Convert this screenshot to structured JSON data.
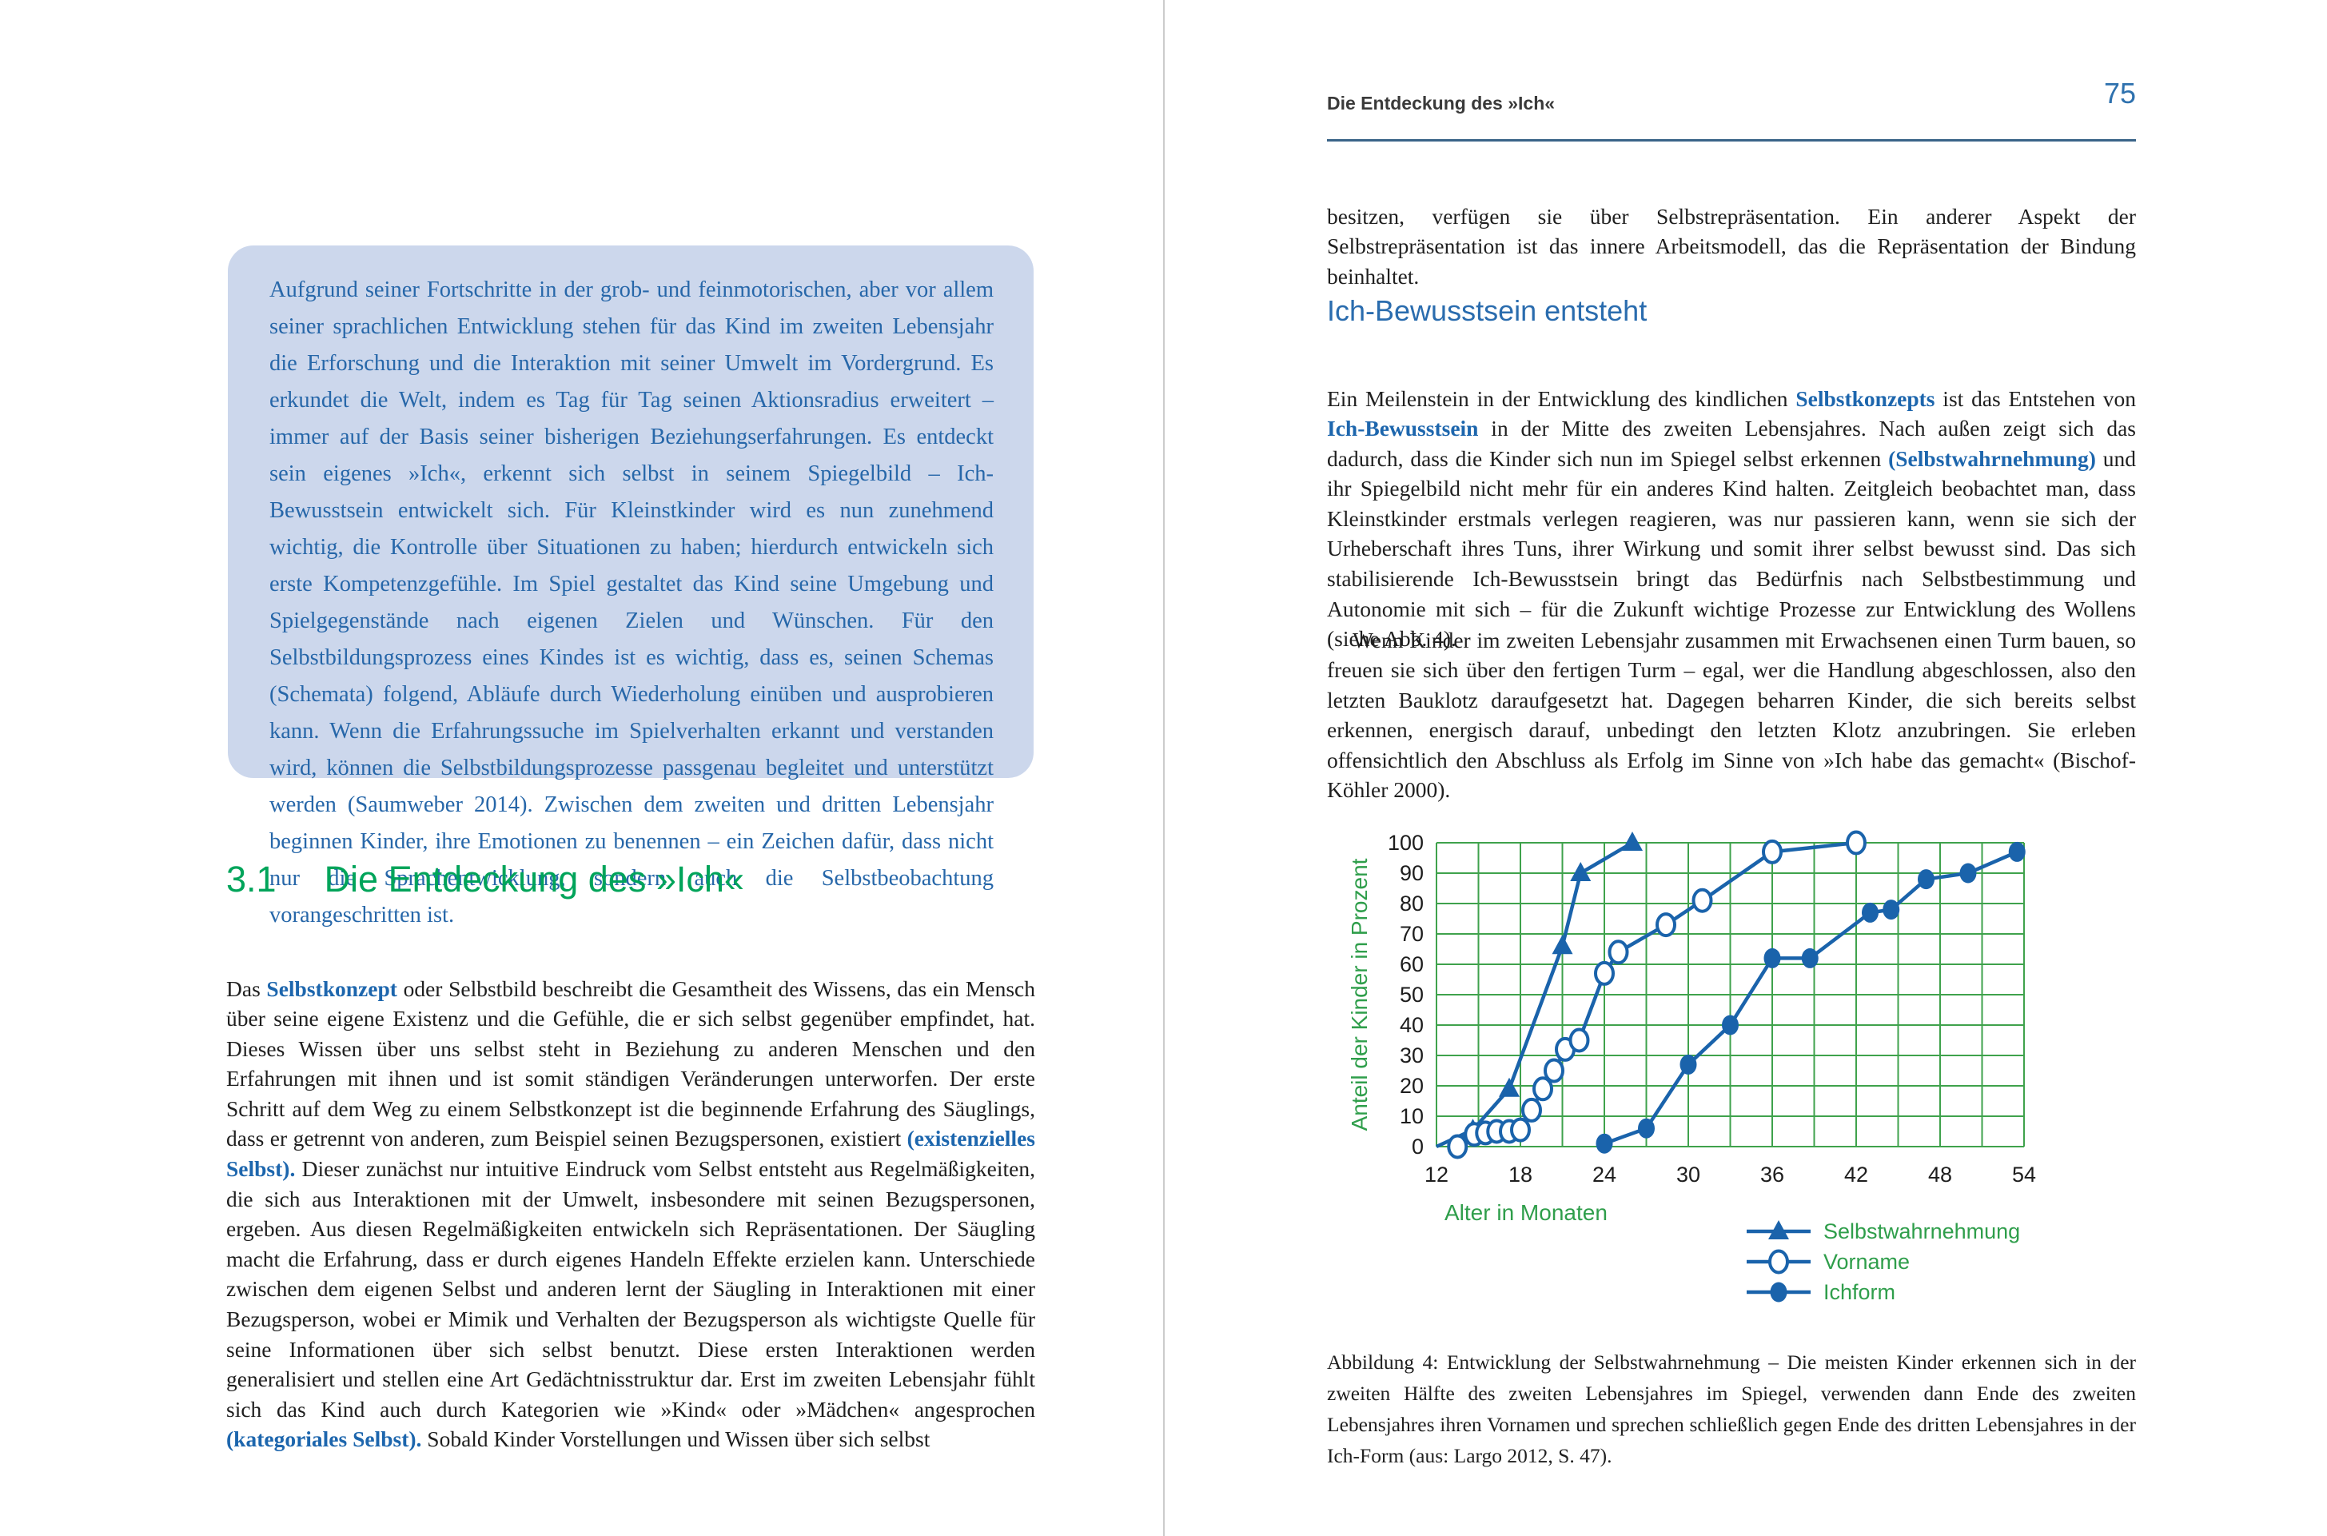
{
  "colors": {
    "accent_blue": "#1d66ad",
    "heading_green": "#00a45a",
    "infobox_bg": "#ccd7ec",
    "infobox_text": "#2767a9",
    "header_rule": "#3a6488",
    "page_number_blue": "#2e71ae"
  },
  "page_left": {
    "infobox_text": "Aufgrund seiner Fortschritte in der grob- und feinmotorischen, aber vor allem seiner sprachlichen Entwicklung stehen für das Kind im zweiten Lebensjahr die Erforschung und die Interaktion mit seiner Umwelt im Vordergrund. Es erkundet die Welt, indem es Tag für Tag seinen Aktionsradius erweitert – immer auf der Basis seiner bisherigen Beziehungserfahrungen. Es entdeckt sein eigenes »Ich«, erkennt sich selbst in seinem Spiegelbild – Ich-Bewusstsein entwickelt sich. Für Kleinstkinder wird es nun zunehmend wichtig, die Kontrolle über Situationen zu haben; hierdurch entwickeln sich erste Kompetenzgefühle. Im Spiel gestaltet das Kind seine Umgebung und Spielgegenstände nach eigenen Zielen und Wünschen. Für den Selbstbildungsprozess eines Kindes ist es wichtig, dass es, seinen Schemas (Schemata) folgend, Abläufe durch Wiederholung einüben und ausprobieren kann. Wenn die Erfahrungssuche im Spielverhalten erkannt und verstanden wird, können die Selbstbildungsprozesse passgenau begleitet und unterstützt werden (Saumweber 2014). Zwischen dem zweiten und dritten Lebensjahr beginnen Kinder, ihre Emotionen zu benennen – ein Zeichen dafür, dass nicht nur die Sprachentwicklung, sondern auch die Selbstbeobachtung vorangeschritten ist.",
    "section_number": "3.1",
    "section_title": "Die Entdeckung des »Ich«",
    "body_segments": [
      {
        "t": "Das ",
        "hl": false
      },
      {
        "t": "Selbstkonzept",
        "hl": true
      },
      {
        "t": " oder Selbstbild beschreibt die Gesamtheit des Wissens, das ein Mensch über seine eigene Existenz und die Gefühle, die er sich selbst gegenüber empfindet, hat. Dieses Wissen über uns selbst steht in Beziehung zu anderen Menschen und den Erfahrungen mit ihnen und ist somit ständigen Veränderungen unterworfen. Der erste Schritt auf dem Weg zu einem Selbstkonzept ist die beginnende Erfahrung des Säuglings, dass er getrennt von anderen, zum Beispiel seinen Bezugspersonen, existiert ",
        "hl": false
      },
      {
        "t": "(existenzielles Selbst).",
        "hl": true
      },
      {
        "t": " Dieser zunächst nur intuitive Eindruck vom Selbst entsteht aus Regelmäßigkeiten, die sich aus Interaktionen mit der Umwelt, insbesondere mit seinen Bezugspersonen, ergeben. Aus diesen Regelmäßigkeiten entwickeln sich Repräsentationen. Der Säugling macht die Erfahrung, dass er durch eigenes Handeln Effekte erzielen kann. Unterschiede zwischen dem eigenen Selbst und anderen lernt der Säugling in Interaktionen mit einer Bezugsperson, wobei er Mimik und Verhalten der Bezugsperson als wichtigste Quelle für seine Informationen über sich selbst benutzt. Diese ersten Interaktionen werden generalisiert und stellen eine Art Gedächtnisstruktur dar. Erst im zweiten Lebensjahr fühlt sich das Kind auch durch Kategorien wie »Kind« oder »Mädchen« angesprochen ",
        "hl": false
      },
      {
        "t": "(kategoriales Selbst).",
        "hl": true
      },
      {
        "t": " Sobald Kinder Vorstellungen und Wissen über sich selbst",
        "hl": false
      }
    ]
  },
  "page_right": {
    "running_head": "Die Entdeckung des »Ich«",
    "page_number": "75",
    "para_continuation": "besitzen, verfügen sie über Selbstrepräsentation. Ein anderer Aspekt der Selbstrepräsentation ist das innere Arbeitsmodell, das die Repräsentation der Bindung beinhaltet.",
    "subheading": "Ich-Bewusstsein entsteht",
    "para_bewusstsein_segments": [
      {
        "t": "Ein Meilenstein in der Entwicklung des kindlichen ",
        "hl": false
      },
      {
        "t": "Selbstkonzepts",
        "hl": true
      },
      {
        "t": " ist das Entstehen von ",
        "hl": false
      },
      {
        "t": "Ich-Bewusstsein",
        "hl": true
      },
      {
        "t": " in der Mitte des zweiten Lebensjahres. Nach außen zeigt sich das dadurch, dass die Kinder sich nun im Spiegel selbst erkennen ",
        "hl": false
      },
      {
        "t": "(Selbstwahrnehmung)",
        "hl": true
      },
      {
        "t": " und ihr Spiegelbild nicht mehr für ein anderes Kind halten. Zeitgleich beobachtet man, dass Kleinstkinder erstmals verlegen reagieren, was nur passieren kann, wenn sie sich der Urheberschaft ihres Tuns, ihrer Wirkung und somit ihrer selbst bewusst sind. Das sich stabilisierende Ich-Bewusstsein bringt das Bedürfnis nach Selbstbestimmung und Autonomie mit sich – für die Zukunft wichtige Prozesse zur Entwicklung des Wollens (siehe Abb. 4).",
        "hl": false
      }
    ],
    "para_turm": "Wenn Kinder im zweiten Lebensjahr zusammen mit Erwachsenen einen Turm bauen, so freuen sie sich über den fertigen Turm – egal, wer die Handlung abgeschlossen, also den letzten Bauklotz daraufgesetzt hat. Dagegen beharren Kinder, die sich bereits selbst erkennen, energisch darauf, unbedingt den letzten Klotz anzubringen. Sie erleben offensichtlich den Abschluss als Erfolg im Sinne von »Ich habe das gemacht« (Bischof-Köhler 2000).",
    "figure_caption": "Abbildung 4: Entwicklung der Selbstwahrnehmung – Die meisten Kinder erkennen sich in der zweiten Hälfte des zweiten Lebensjahres im Spiegel, verwenden dann Ende des zweiten Lebensjahres ihren Vornamen und sprechen schließlich gegen Ende des dritten Lebensjahres in der Ich-Form (aus: Largo 2012, S. 47)."
  },
  "chart_data": {
    "type": "line",
    "title": "",
    "xlabel": "Alter in Monaten",
    "ylabel": "Anteil der Kinder in Prozent",
    "xlim": [
      12,
      54
    ],
    "ylim": [
      0,
      100
    ],
    "x_ticks": [
      12,
      18,
      24,
      30,
      36,
      42,
      48,
      54
    ],
    "y_ticks": [
      0,
      10,
      20,
      30,
      40,
      50,
      60,
      70,
      80,
      90,
      100
    ],
    "grid": true,
    "grid_x_step": 3,
    "grid_y_step": 10,
    "grid_color": "#3fa24c",
    "series_color": "#1a63ab",
    "legend_position": "bottom-right",
    "series": [
      {
        "name": "Selbstwahrnehmung",
        "marker": "triangle",
        "points": [
          [
            12,
            0
          ],
          [
            14.6,
            5.5
          ],
          [
            17.2,
            19
          ],
          [
            21,
            66
          ],
          [
            22.3,
            90
          ],
          [
            26,
            100
          ]
        ]
      },
      {
        "name": "Vorname",
        "marker": "open-circle",
        "points": [
          [
            13.5,
            0
          ],
          [
            14.7,
            4
          ],
          [
            15.5,
            4.5
          ],
          [
            16.3,
            5
          ],
          [
            17.2,
            5
          ],
          [
            18,
            5.5
          ],
          [
            18.8,
            12
          ],
          [
            19.6,
            19
          ],
          [
            20.4,
            25
          ],
          [
            21.2,
            32
          ],
          [
            22.2,
            35
          ],
          [
            24,
            57
          ],
          [
            25,
            64
          ],
          [
            28.4,
            73
          ],
          [
            31,
            81
          ],
          [
            36,
            97
          ],
          [
            42,
            100
          ]
        ]
      },
      {
        "name": "Ichform",
        "marker": "filled-circle",
        "points": [
          [
            24,
            1
          ],
          [
            27,
            6
          ],
          [
            30,
            27
          ],
          [
            33,
            40
          ],
          [
            36,
            62
          ],
          [
            38.7,
            62
          ],
          [
            43,
            77
          ],
          [
            44.5,
            78
          ],
          [
            47,
            88
          ],
          [
            50,
            90
          ],
          [
            53.5,
            97
          ]
        ]
      }
    ]
  }
}
